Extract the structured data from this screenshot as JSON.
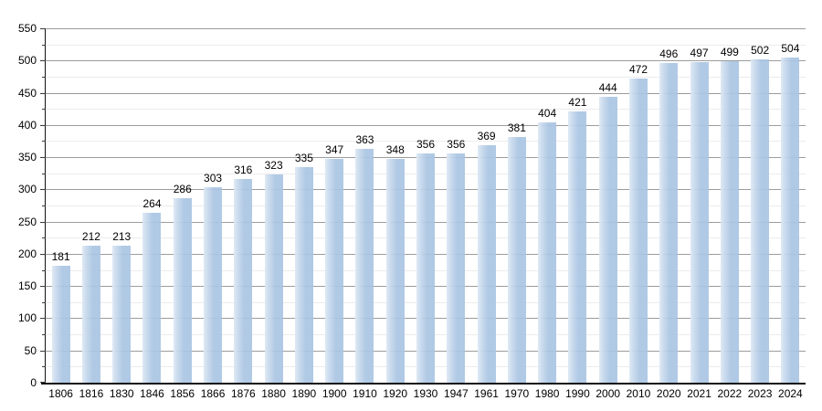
{
  "chart_data": {
    "type": "bar",
    "title": "",
    "xlabel": "",
    "ylabel": "",
    "categories": [
      "1806",
      "1816",
      "1830",
      "1846",
      "1856",
      "1866",
      "1876",
      "1880",
      "1890",
      "1900",
      "1910",
      "1920",
      "1930",
      "1947",
      "1961",
      "1970",
      "1980",
      "1990",
      "2000",
      "2010",
      "2020",
      "2021",
      "2022",
      "2023",
      "2024"
    ],
    "values": [
      181,
      212,
      213,
      264,
      286,
      303,
      316,
      323,
      335,
      347,
      363,
      348,
      356,
      356,
      369,
      381,
      404,
      421,
      444,
      472,
      496,
      497,
      499,
      502,
      504
    ],
    "value_labels_shown": true,
    "ylim": [
      0,
      550
    ],
    "y_major_step": 50,
    "y_minor_step": 25,
    "y_tick_labels": [
      "0",
      "50",
      "100",
      "150",
      "200",
      "250",
      "300",
      "350",
      "400",
      "450",
      "500",
      "550"
    ],
    "grid": "horizontal, major and minor, behind bars",
    "legend": "none",
    "colors": {
      "bar_fill": "rgba(169,196,227,0.92)",
      "bar_fill_hex": "#b0c9e5",
      "major_gridline": "#9c9c9c",
      "minor_gridline": "#ececec",
      "axis": "#111111",
      "text": "#000000",
      "background": "#ffffff"
    }
  }
}
